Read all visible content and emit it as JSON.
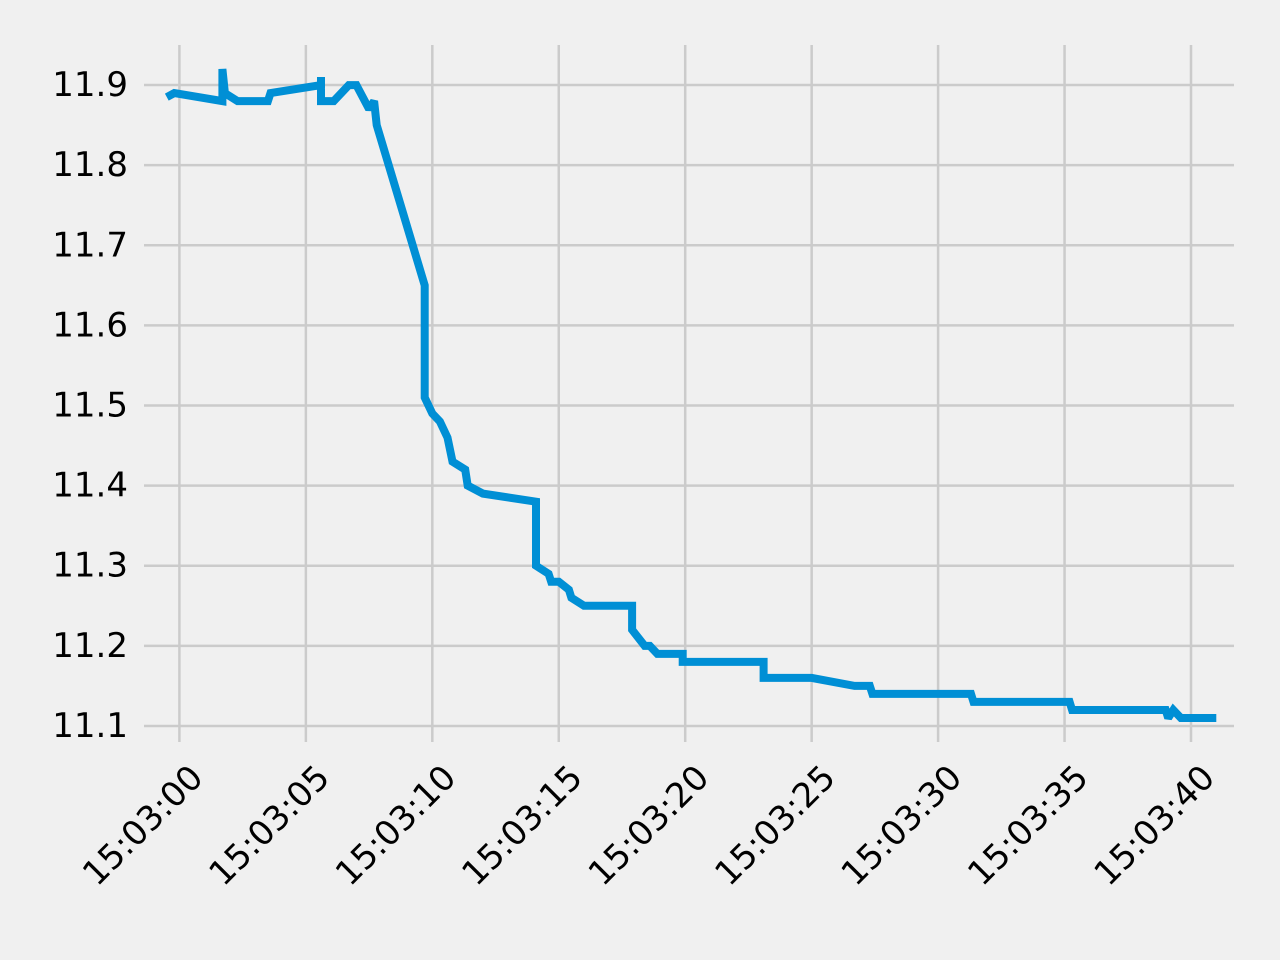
{
  "chart_data": {
    "type": "line",
    "title": "",
    "xlabel": "",
    "ylabel": "",
    "grid": true,
    "x_ticks": [
      "15:03:00",
      "15:03:05",
      "15:03:10",
      "15:03:15",
      "15:03:20",
      "15:03:25",
      "15:03:30",
      "15:03:35",
      "15:03:40"
    ],
    "y_ticks": [
      "11.1",
      "11.2",
      "11.3",
      "11.4",
      "11.5",
      "11.6",
      "11.7",
      "11.8",
      "11.9"
    ],
    "xlim": [
      "15:02:58.6",
      "15:03:41.7"
    ],
    "ylim": [
      11.08,
      11.95
    ],
    "colors": {
      "background": "#f0f0f0",
      "grid": "#cbcbcb",
      "line": "#008fd5",
      "text": "#000000"
    },
    "series": [
      {
        "x": [
          "15:02:59.5",
          "15:02:59.8",
          "15:03:01.7",
          "15:03:01.7",
          "15:03:01.8",
          "15:03:02.3",
          "15:03:03.5",
          "15:03:03.6",
          "15:03:05.6",
          "15:03:05.6",
          "15:03:05.6",
          "15:03:06.1",
          "15:03:06.7",
          "15:03:07.0",
          "15:03:07.5",
          "15:03:07.7",
          "15:03:07.8",
          "15:03:09.7",
          "15:03:09.7",
          "15:03:10.0",
          "15:03:10.3",
          "15:03:10.6",
          "15:03:10.8",
          "15:03:11.3",
          "15:03:11.4",
          "15:03:12.0",
          "15:03:14.1",
          "15:03:14.1",
          "15:03:14.6",
          "15:03:14.7",
          "15:03:15.0",
          "15:03:15.4",
          "15:03:15.5",
          "15:03:16.0",
          "15:03:17.9",
          "15:03:17.9",
          "15:03:18.4",
          "15:03:18.6",
          "15:03:18.9",
          "15:03:19.9",
          "15:03:19.9",
          "15:03:23.1",
          "15:03:23.1",
          "15:03:25.0",
          "15:03:26.7",
          "15:03:27.3",
          "15:03:27.4",
          "15:03:31.3",
          "15:03:31.4",
          "15:03:35.2",
          "15:03:35.3",
          "15:03:39.0",
          "15:03:39.1",
          "15:03:39.3",
          "15:03:39.6",
          "15:03:41.0"
        ],
        "y": [
          11.885,
          11.89,
          11.88,
          11.92,
          11.89,
          11.88,
          11.88,
          11.89,
          11.9,
          11.91,
          11.88,
          11.88,
          11.9,
          11.9,
          11.87,
          11.88,
          11.85,
          11.65,
          11.51,
          11.49,
          11.48,
          11.46,
          11.43,
          11.42,
          11.4,
          11.39,
          11.38,
          11.3,
          11.29,
          11.28,
          11.28,
          11.27,
          11.26,
          11.25,
          11.25,
          11.22,
          11.2,
          11.2,
          11.19,
          11.19,
          11.18,
          11.18,
          11.16,
          11.16,
          11.15,
          11.15,
          11.14,
          11.14,
          11.13,
          11.13,
          11.12,
          11.12,
          11.11,
          11.12,
          11.11,
          11.11
        ]
      }
    ]
  }
}
